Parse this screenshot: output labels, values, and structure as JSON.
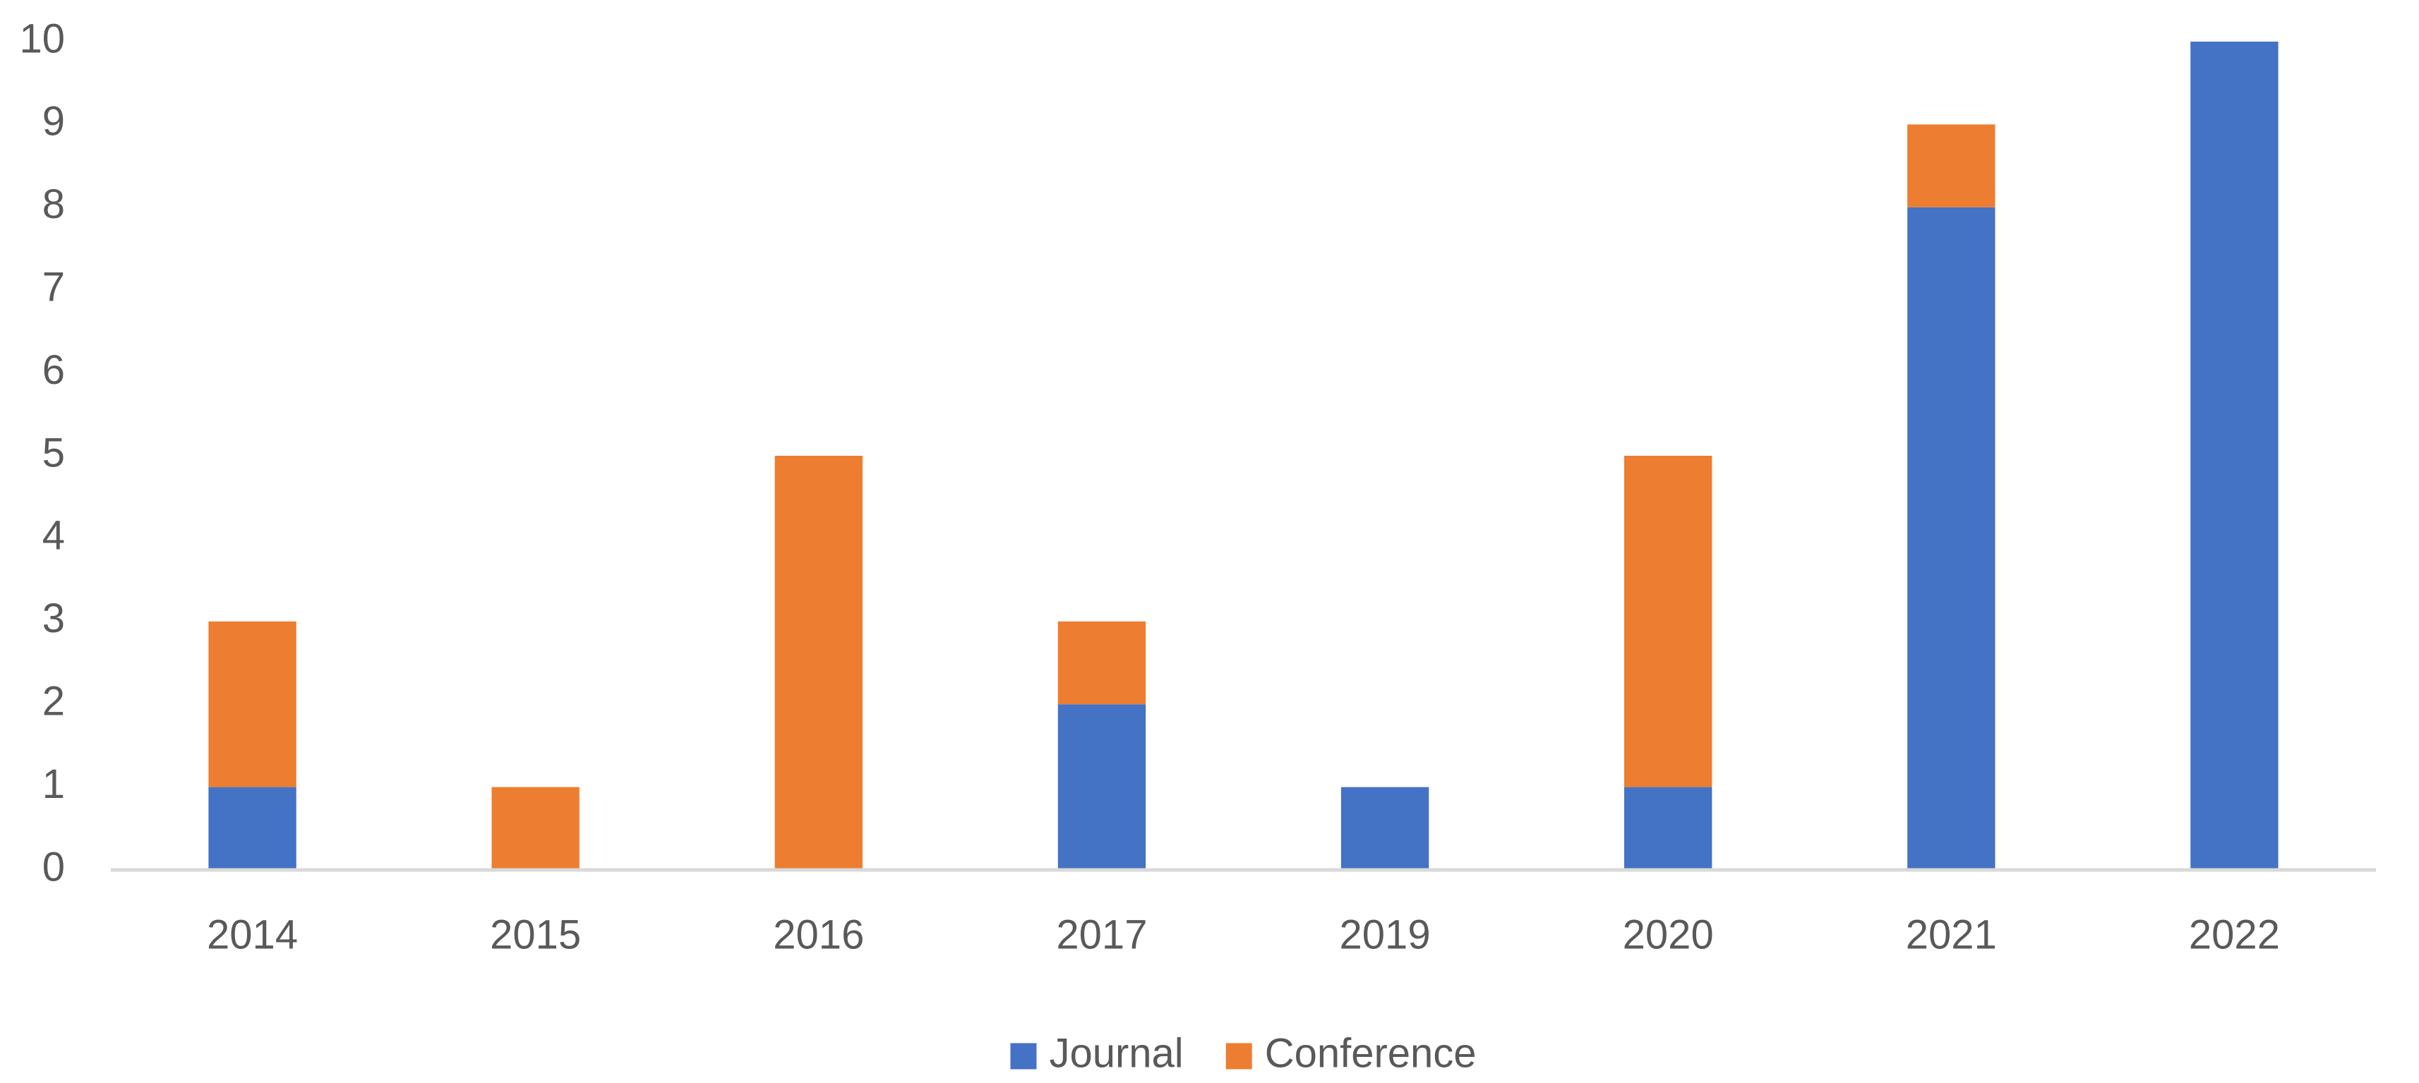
{
  "chart_data": {
    "type": "stacked_bar",
    "categories": [
      "2014",
      "2015",
      "2016",
      "2017",
      "2019",
      "2020",
      "2021",
      "2022"
    ],
    "series": [
      {
        "name": "Journal",
        "color": "#4472c4",
        "values": [
          1,
          0,
          0,
          2,
          1,
          1,
          8,
          10
        ]
      },
      {
        "name": "Conference",
        "color": "#ed7d31",
        "values": [
          2,
          1,
          5,
          1,
          0,
          4,
          1,
          0
        ]
      }
    ],
    "ylim": [
      0,
      10
    ],
    "yticks": [
      0,
      1,
      2,
      3,
      4,
      5,
      6,
      7,
      8,
      9,
      10
    ],
    "grid": false,
    "legend": "bottom"
  }
}
